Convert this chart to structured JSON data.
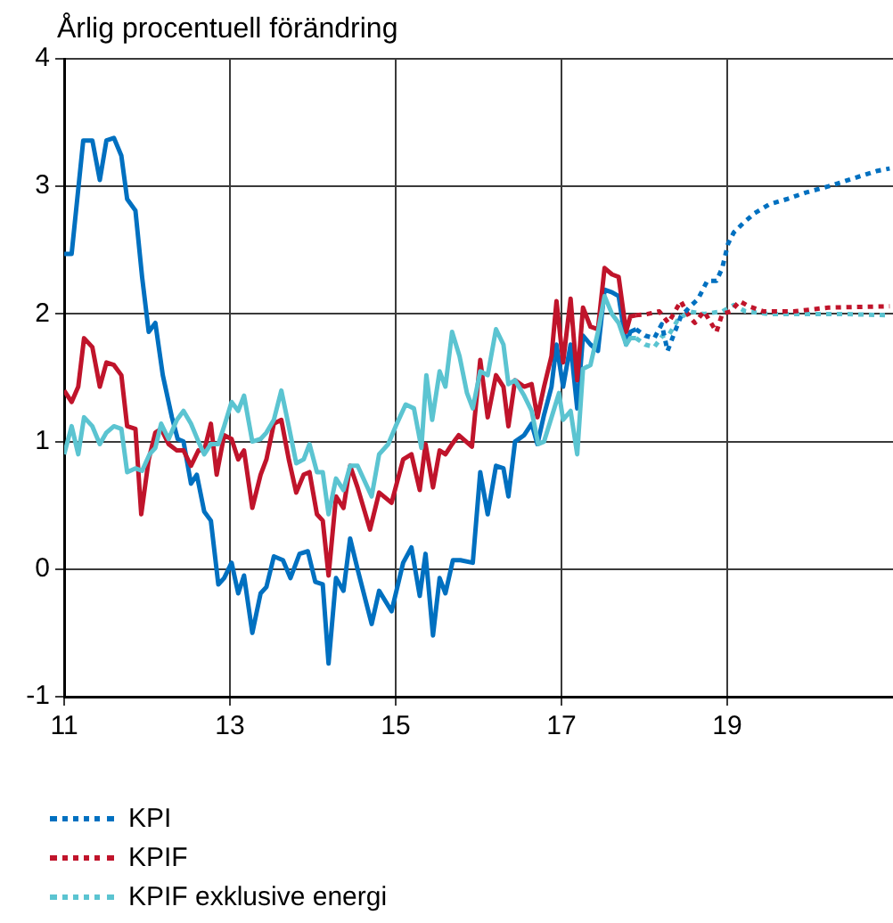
{
  "chart_data": {
    "type": "line",
    "subtitle": "Årlig procentuell förändring",
    "xlim": [
      11,
      21
    ],
    "xticks": [
      11,
      13,
      15,
      17,
      19
    ],
    "ylim": [
      -1,
      4
    ],
    "yticks": [
      -1,
      0,
      1,
      2,
      3,
      4
    ],
    "grid": true,
    "legend": "bottom left",
    "marker": "none",
    "series": [
      {
        "name": "KPI",
        "color": "#0070c0",
        "line_style": "dotted",
        "x": [
          17.9,
          18.01,
          18.12,
          18.21,
          18.28,
          18.35,
          18.44,
          18.54,
          18.65,
          18.76,
          18.87,
          18.94,
          19.01,
          19.08,
          19.19,
          19.33,
          19.51,
          19.72,
          19.94,
          20.22,
          20.51,
          20.8,
          20.96
        ],
        "values": [
          1.88,
          1.83,
          1.81,
          1.92,
          1.71,
          1.83,
          1.98,
          2.05,
          2.12,
          2.26,
          2.26,
          2.36,
          2.55,
          2.64,
          2.71,
          2.79,
          2.86,
          2.9,
          2.95,
          3.0,
          3.06,
          3.12,
          3.14
        ]
      },
      {
        "name": "KPIF",
        "color": "#c0142b",
        "line_style": "dotted",
        "x": [
          17.9,
          18.04,
          18.18,
          18.29,
          18.44,
          18.54,
          18.61,
          18.72,
          18.87,
          18.94,
          19.04,
          19.15,
          19.26,
          19.44,
          19.8,
          20.22,
          20.96
        ],
        "values": [
          1.99,
          2.0,
          2.02,
          1.93,
          2.1,
          1.98,
          1.93,
          2.02,
          1.86,
          2.0,
          2.02,
          2.1,
          2.06,
          2.02,
          2.02,
          2.05,
          2.06
        ]
      },
      {
        "name": "KPIF exklusive energi",
        "color": "#5bc4d1",
        "line_style": "dotted",
        "x": [
          17.9,
          18.01,
          18.12,
          18.22,
          18.29,
          18.4,
          18.54,
          18.72,
          18.94,
          19.08,
          19.22,
          19.51,
          19.94,
          20.37,
          20.96
        ],
        "values": [
          1.81,
          1.76,
          1.74,
          1.83,
          1.83,
          1.95,
          2.02,
          2.0,
          2.02,
          2.07,
          2.02,
          2.0,
          2.0,
          2.0,
          1.99
        ]
      },
      {
        "color": "#5bc4d1",
        "line_style": "solid",
        "x": [
          11.0,
          11.09,
          11.17,
          11.24,
          11.34,
          11.43,
          11.51,
          11.6,
          11.69,
          11.76,
          11.86,
          11.94,
          12.03,
          12.1,
          12.17,
          12.26,
          12.36,
          12.44,
          12.53,
          12.62,
          12.69,
          12.77,
          12.86,
          12.93,
          13.02,
          13.1,
          13.17,
          13.27,
          13.37,
          13.44,
          13.53,
          13.62,
          13.71,
          13.8,
          13.89,
          13.96,
          14.05,
          14.12,
          14.19,
          14.28,
          14.37,
          14.45,
          14.54,
          14.71,
          14.8,
          14.91,
          15.0,
          15.12,
          15.22,
          15.31,
          15.37,
          15.44,
          15.53,
          15.6,
          15.68,
          15.77,
          15.86,
          15.93,
          16.02,
          16.11,
          16.21,
          16.3,
          16.36,
          16.44,
          16.55,
          16.64,
          16.72,
          16.79,
          16.88,
          16.97,
          17.02,
          17.11,
          17.19,
          17.26,
          17.35,
          17.44,
          17.52,
          17.61,
          17.69,
          17.78,
          17.83,
          17.9
        ],
        "values": [
          0.9,
          1.12,
          0.9,
          1.19,
          1.12,
          0.98,
          1.07,
          1.12,
          1.1,
          0.76,
          0.79,
          0.77,
          0.9,
          0.95,
          1.14,
          1.02,
          1.17,
          1.24,
          1.14,
          1.0,
          0.9,
          0.98,
          0.98,
          1.12,
          1.31,
          1.24,
          1.36,
          1.0,
          1.02,
          1.07,
          1.17,
          1.4,
          1.12,
          0.83,
          0.86,
          0.98,
          0.76,
          0.76,
          0.43,
          0.71,
          0.62,
          0.81,
          0.81,
          0.57,
          0.9,
          0.98,
          1.12,
          1.29,
          1.26,
          0.95,
          1.52,
          1.17,
          1.55,
          1.43,
          1.86,
          1.67,
          1.38,
          1.26,
          1.55,
          1.52,
          1.88,
          1.76,
          1.45,
          1.48,
          1.36,
          1.24,
          0.98,
          1.0,
          1.19,
          1.38,
          1.17,
          1.24,
          0.9,
          1.57,
          1.6,
          1.86,
          2.14,
          2.0,
          1.93,
          1.76,
          1.81,
          1.81
        ]
      },
      {
        "color": "#c0142b",
        "line_style": "solid",
        "x": [
          11.0,
          11.09,
          11.17,
          11.24,
          11.34,
          11.43,
          11.51,
          11.6,
          11.69,
          11.76,
          11.86,
          11.93,
          12.02,
          12.1,
          12.17,
          12.26,
          12.36,
          12.44,
          12.53,
          12.62,
          12.69,
          12.77,
          12.84,
          12.93,
          13.02,
          13.1,
          13.17,
          13.27,
          13.37,
          13.44,
          13.53,
          13.62,
          13.71,
          13.8,
          13.89,
          13.96,
          14.05,
          14.12,
          14.19,
          14.28,
          14.37,
          14.45,
          14.54,
          14.69,
          14.8,
          14.95,
          15.09,
          15.19,
          15.29,
          15.36,
          15.45,
          15.53,
          15.6,
          15.68,
          15.76,
          15.92,
          16.02,
          16.11,
          16.21,
          16.3,
          16.36,
          16.44,
          16.55,
          16.64,
          16.71,
          16.79,
          16.88,
          16.94,
          17.02,
          17.11,
          17.19,
          17.26,
          17.35,
          17.44,
          17.52,
          17.61,
          17.69,
          17.78,
          17.83,
          17.9
        ],
        "values": [
          1.4,
          1.31,
          1.43,
          1.81,
          1.74,
          1.43,
          1.62,
          1.6,
          1.52,
          1.12,
          1.1,
          0.43,
          0.86,
          1.07,
          1.1,
          0.98,
          0.93,
          0.93,
          0.81,
          0.93,
          0.93,
          1.14,
          0.74,
          1.05,
          1.02,
          0.86,
          0.93,
          0.48,
          0.74,
          0.86,
          1.14,
          1.17,
          0.86,
          0.6,
          0.74,
          0.76,
          0.43,
          0.38,
          -0.05,
          0.57,
          0.48,
          0.81,
          0.64,
          0.31,
          0.6,
          0.52,
          0.86,
          0.9,
          0.62,
          0.98,
          0.64,
          0.93,
          0.9,
          0.98,
          1.05,
          0.96,
          1.64,
          1.19,
          1.52,
          1.43,
          1.12,
          1.48,
          1.43,
          1.45,
          1.19,
          1.43,
          1.67,
          2.1,
          1.62,
          2.12,
          1.48,
          2.05,
          1.9,
          1.88,
          2.36,
          2.31,
          2.29,
          1.86,
          1.98,
          1.99
        ]
      },
      {
        "color": "#0070c0",
        "line_style": "solid",
        "x": [
          11.0,
          11.09,
          11.23,
          11.34,
          11.43,
          11.51,
          11.6,
          11.69,
          11.76,
          11.86,
          11.94,
          12.02,
          12.1,
          12.19,
          12.3,
          12.37,
          12.44,
          12.53,
          12.6,
          12.69,
          12.77,
          12.86,
          12.93,
          13.02,
          13.1,
          13.17,
          13.27,
          13.37,
          13.44,
          13.53,
          13.64,
          13.73,
          13.84,
          13.94,
          14.03,
          14.12,
          14.19,
          14.28,
          14.37,
          14.45,
          14.54,
          14.71,
          14.8,
          14.95,
          15.09,
          15.19,
          15.29,
          15.36,
          15.45,
          15.53,
          15.6,
          15.69,
          15.78,
          15.93,
          16.02,
          16.11,
          16.21,
          16.3,
          16.36,
          16.44,
          16.55,
          16.64,
          16.71,
          16.79,
          16.88,
          16.94,
          17.02,
          17.11,
          17.19,
          17.26,
          17.35,
          17.44,
          17.52,
          17.61,
          17.69,
          17.78,
          17.83,
          17.9
        ],
        "values": [
          2.47,
          2.47,
          3.36,
          3.36,
          3.05,
          3.36,
          3.38,
          3.24,
          2.9,
          2.81,
          2.29,
          1.86,
          1.93,
          1.52,
          1.19,
          1.02,
          1.0,
          0.67,
          0.74,
          0.45,
          0.38,
          -0.12,
          -0.07,
          0.05,
          -0.19,
          -0.05,
          -0.5,
          -0.19,
          -0.14,
          0.1,
          0.07,
          -0.07,
          0.12,
          0.14,
          -0.1,
          -0.12,
          -0.74,
          -0.07,
          -0.17,
          0.24,
          0,
          -0.43,
          -0.17,
          -0.33,
          0.05,
          0.17,
          -0.21,
          0.12,
          -0.52,
          -0.07,
          -0.19,
          0.07,
          0.07,
          0.05,
          0.76,
          0.43,
          0.81,
          0.79,
          0.57,
          1.0,
          1.05,
          1.14,
          0.98,
          1.21,
          1.43,
          1.76,
          1.43,
          1.76,
          1.26,
          1.83,
          1.76,
          1.71,
          2.19,
          2.17,
          2.14,
          1.76,
          1.86,
          1.88
        ]
      }
    ]
  }
}
